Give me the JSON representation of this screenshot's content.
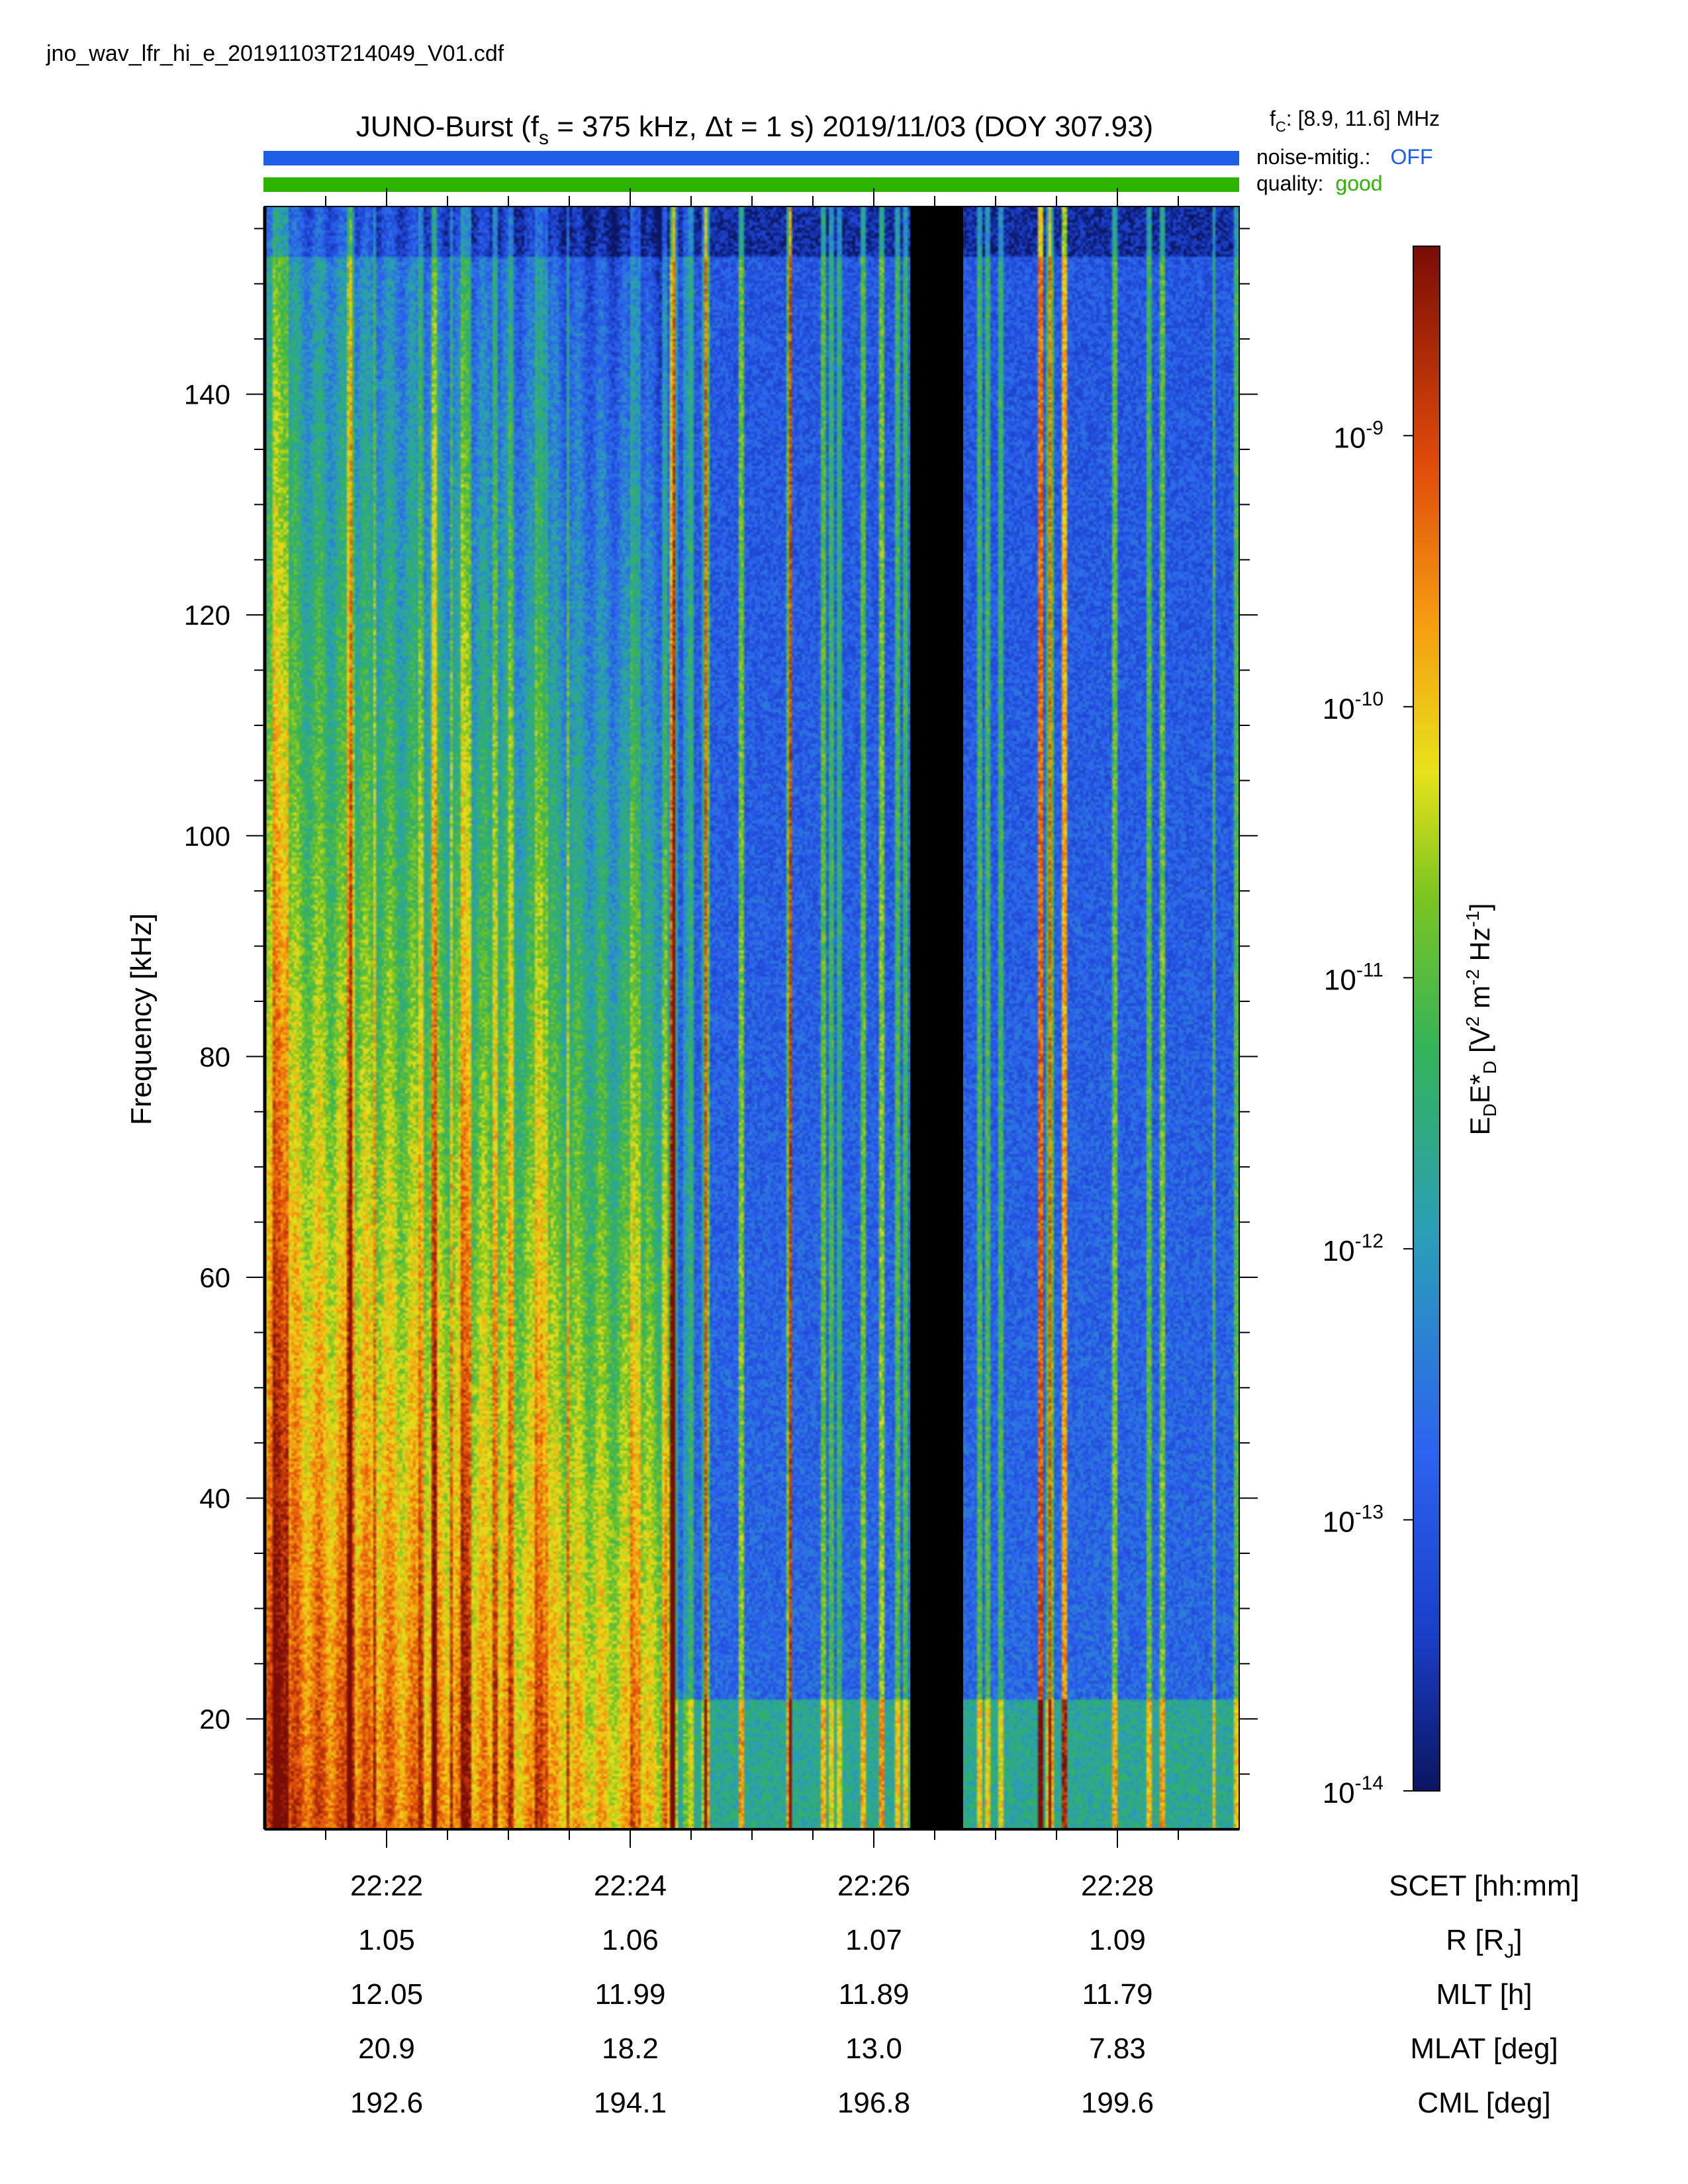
{
  "filename": "jno_wav_lfr_hi_e_20191103T214049_V01.cdf",
  "title": {
    "prefix": "JUNO-Burst (f",
    "sub": "s",
    "rest": " = 375 kHz, Δt = 1 s)  2019/11/03 (DOY 307.93)"
  },
  "status": {
    "fc_label": "f",
    "fc_sub": "C",
    "fc_value": ": [8.9, 11.6] MHz",
    "noise_label": "noise-mitig.:",
    "noise_value": "OFF",
    "noise_color": "#1f5fe8",
    "quality_label": "quality:",
    "quality_value": "good",
    "quality_color": "#2db300"
  },
  "chart_data": {
    "type": "heatmap",
    "ylabel": "Frequency [kHz]",
    "ylim": [
      10,
      157
    ],
    "yticks": [
      20,
      40,
      60,
      80,
      100,
      120,
      140
    ],
    "x_start": "22:21:00",
    "x_end": "22:29:00",
    "xtick_times": [
      "22:22",
      "22:24",
      "22:26",
      "22:28"
    ],
    "data_gap": {
      "start": "22:26:18",
      "end": "22:26:44",
      "color": "#000000"
    },
    "colorbar": {
      "label": "E_D E*_D [V² m⁻² Hz⁻¹]",
      "scale": "log",
      "range": [
        1e-14,
        5e-09
      ],
      "ticks": [
        {
          "base": "10",
          "exp": "-14"
        },
        {
          "base": "10",
          "exp": "-13"
        },
        {
          "base": "10",
          "exp": "-12"
        },
        {
          "base": "10",
          "exp": "-11"
        },
        {
          "base": "10",
          "exp": "-10"
        },
        {
          "base": "10",
          "exp": "-9"
        }
      ]
    },
    "ephemeris": [
      {
        "label": "SCET [hh:mm]",
        "values": [
          "22:22",
          "22:24",
          "22:26",
          "22:28"
        ]
      },
      {
        "label": "R [R",
        "label_sub": "J",
        "label_end": "]",
        "values": [
          "1.05",
          "1.06",
          "1.07",
          "1.09"
        ]
      },
      {
        "label": "MLT [h]",
        "values": [
          "12.05",
          "11.99",
          "11.89",
          "11.79"
        ]
      },
      {
        "label": "MLAT [deg]",
        "values": [
          "20.9",
          "18.2",
          "13.0",
          "7.83"
        ]
      },
      {
        "label": "CML [deg]",
        "values": [
          "192.6",
          "194.1",
          "196.8",
          "199.6"
        ]
      }
    ]
  }
}
